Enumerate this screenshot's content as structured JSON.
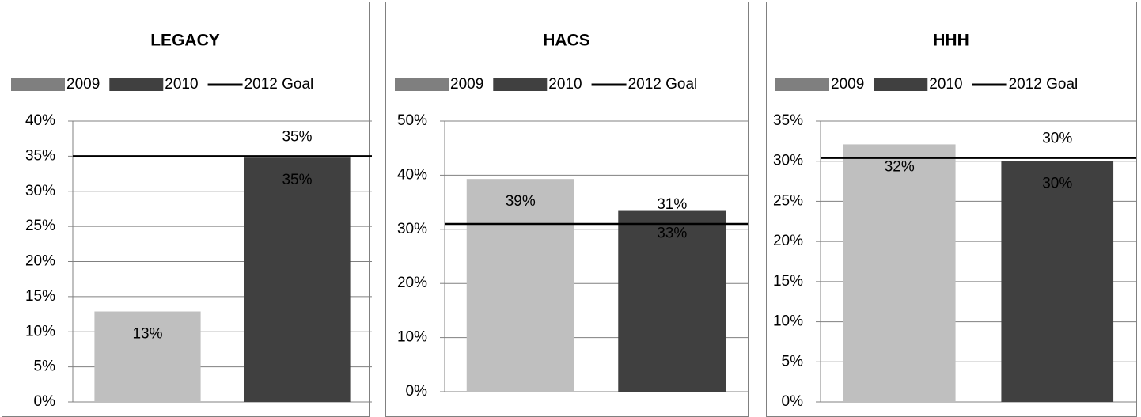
{
  "chart_data": [
    {
      "type": "bar",
      "title": "LEGACY",
      "series": [
        {
          "name": "2009",
          "color": "#bfbfbf",
          "values": [
            12.9
          ],
          "value_labels": [
            "13%"
          ]
        },
        {
          "name": "2010",
          "color": "#404040",
          "values": [
            34.8
          ],
          "value_labels": [
            "35%"
          ]
        },
        {
          "name": "2012 Goal",
          "type": "line",
          "color": "#000000",
          "values": [
            35
          ],
          "value_labels": [
            "35%"
          ]
        }
      ],
      "ylim": [
        0,
        40
      ],
      "yticks": [
        {
          "value": 0,
          "label": "0%"
        },
        {
          "value": 5,
          "label": "5%"
        },
        {
          "value": 10,
          "label": "10%"
        },
        {
          "value": 15,
          "label": "15%"
        },
        {
          "value": 20,
          "label": "20%"
        },
        {
          "value": 25,
          "label": "25%"
        },
        {
          "value": 30,
          "label": "30%"
        },
        {
          "value": 35,
          "label": "35%"
        },
        {
          "value": 40,
          "label": "40%"
        }
      ],
      "grid": true,
      "legend": "top"
    },
    {
      "type": "bar",
      "title": "HACS",
      "series": [
        {
          "name": "2009",
          "color": "#bfbfbf",
          "values": [
            39.3
          ],
          "value_labels": [
            "39%"
          ]
        },
        {
          "name": "2010",
          "color": "#404040",
          "values": [
            33.4
          ],
          "value_labels": [
            "33%"
          ]
        },
        {
          "name": "2012 Goal",
          "type": "line",
          "color": "#000000",
          "values": [
            31
          ],
          "value_labels": [
            "31%"
          ]
        }
      ],
      "ylim": [
        0,
        50
      ],
      "yticks": [
        {
          "value": 0,
          "label": "0%"
        },
        {
          "value": 10,
          "label": "10%"
        },
        {
          "value": 20,
          "label": "20%"
        },
        {
          "value": 30,
          "label": "30%"
        },
        {
          "value": 40,
          "label": "40%"
        },
        {
          "value": 50,
          "label": "50%"
        }
      ],
      "grid": true,
      "legend": "top"
    },
    {
      "type": "bar",
      "title": "HHH",
      "series": [
        {
          "name": "2009",
          "color": "#bfbfbf",
          "values": [
            32.1
          ],
          "value_labels": [
            "32%"
          ]
        },
        {
          "name": "2010",
          "color": "#404040",
          "values": [
            30
          ],
          "value_labels": [
            "30%"
          ]
        },
        {
          "name": "2012 Goal",
          "type": "line",
          "color": "#000000",
          "values": [
            30.4
          ],
          "value_labels": [
            "30%"
          ]
        }
      ],
      "ylim": [
        0,
        35
      ],
      "yticks": [
        {
          "value": 0,
          "label": "0%"
        },
        {
          "value": 5,
          "label": "5%"
        },
        {
          "value": 10,
          "label": "10%"
        },
        {
          "value": 15,
          "label": "15%"
        },
        {
          "value": 20,
          "label": "20%"
        },
        {
          "value": 25,
          "label": "25%"
        },
        {
          "value": 30,
          "label": "30%"
        },
        {
          "value": 35,
          "label": "35%"
        }
      ],
      "grid": true,
      "legend": "top"
    }
  ]
}
